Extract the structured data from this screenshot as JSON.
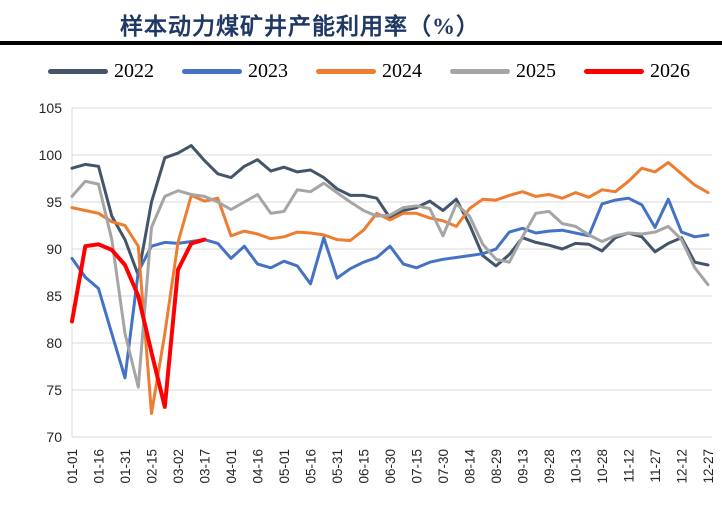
{
  "header": {
    "title": "样本动力煤矿井产能利用率（%）",
    "title_color": "#1F3864",
    "divider_color": "#000000"
  },
  "legend": {
    "position": "top",
    "items": [
      {
        "label": "2022",
        "color": "#44546A"
      },
      {
        "label": "2023",
        "color": "#4472C4"
      },
      {
        "label": "2024",
        "color": "#ED7D31"
      },
      {
        "label": "2025",
        "color": "#A5A5A5"
      },
      {
        "label": "2026",
        "color": "#FF0000"
      }
    ]
  },
  "chart_data": {
    "type": "line",
    "title": "样本动力煤矿井产能利用率（%）",
    "xlabel": "",
    "ylabel": "",
    "ylim": [
      70,
      105
    ],
    "yticks": [
      70,
      75,
      80,
      85,
      90,
      95,
      100,
      105
    ],
    "grid": "horizontal",
    "gridline_color": "#D9D9D9",
    "axis_text_color": "#262626",
    "x": [
      "01-01",
      "01-08",
      "01-16",
      "01-23",
      "01-31",
      "02-08",
      "02-15",
      "02-22",
      "03-02",
      "03-09",
      "03-17",
      "03-24",
      "04-01",
      "04-08",
      "04-16",
      "04-23",
      "05-01",
      "05-08",
      "05-16",
      "05-23",
      "05-31",
      "06-08",
      "06-15",
      "06-22",
      "06-30",
      "07-08",
      "07-15",
      "07-22",
      "07-30",
      "08-06",
      "08-14",
      "08-21",
      "08-29",
      "09-05",
      "09-13",
      "09-21",
      "09-28",
      "10-05",
      "10-13",
      "10-20",
      "10-28",
      "11-05",
      "11-12",
      "11-20",
      "11-27",
      "12-05",
      "12-12",
      "12-20",
      "12-27"
    ],
    "xtick_labels": [
      "01-01",
      "01-16",
      "01-31",
      "02-15",
      "03-02",
      "03-17",
      "04-01",
      "04-16",
      "05-01",
      "05-16",
      "05-31",
      "06-15",
      "06-30",
      "07-15",
      "07-30",
      "08-14",
      "08-29",
      "09-13",
      "09-28",
      "10-13",
      "10-28",
      "11-12",
      "11-27",
      "12-12",
      "12-27"
    ],
    "series": [
      {
        "name": "2022",
        "color": "#44546A",
        "width": 3,
        "values": [
          98.6,
          99.0,
          98.8,
          93.5,
          91.0,
          87.2,
          95.0,
          99.7,
          100.2,
          101.0,
          99.4,
          98.0,
          97.6,
          98.8,
          99.5,
          98.3,
          98.7,
          98.2,
          98.4,
          97.6,
          96.4,
          95.7,
          95.7,
          95.4,
          93.3,
          94.1,
          94.4,
          95.1,
          94.1,
          95.3,
          92.6,
          89.3,
          88.2,
          89.4,
          91.2,
          90.7,
          90.4,
          90.0,
          90.6,
          90.5,
          89.8,
          91.2,
          91.7,
          91.3,
          89.7,
          90.6,
          91.2,
          88.6,
          88.3
        ]
      },
      {
        "name": "2023",
        "color": "#4472C4",
        "width": 3,
        "values": [
          89.0,
          87.0,
          85.8,
          81.0,
          76.3,
          87.6,
          90.3,
          90.7,
          90.6,
          90.8,
          91.0,
          90.6,
          89.0,
          90.3,
          88.4,
          88.0,
          88.7,
          88.2,
          86.3,
          91.2,
          86.9,
          87.9,
          88.6,
          89.1,
          90.3,
          88.4,
          88.0,
          88.6,
          88.9,
          89.1,
          89.3,
          89.5,
          90.0,
          91.8,
          92.2,
          91.7,
          91.9,
          92.0,
          91.7,
          91.4,
          94.8,
          95.2,
          95.4,
          94.7,
          92.3,
          95.3,
          91.8,
          91.3,
          91.5
        ]
      },
      {
        "name": "2024",
        "color": "#ED7D31",
        "width": 3,
        "values": [
          94.4,
          94.1,
          93.8,
          92.9,
          92.5,
          90.3,
          72.5,
          81.0,
          90.7,
          95.7,
          95.1,
          95.4,
          91.4,
          91.9,
          91.6,
          91.1,
          91.3,
          91.8,
          91.7,
          91.5,
          91.0,
          90.9,
          92.0,
          93.8,
          93.1,
          93.8,
          93.8,
          93.3,
          93.0,
          92.4,
          94.3,
          95.3,
          95.2,
          95.7,
          96.1,
          95.6,
          95.8,
          95.4,
          96.0,
          95.5,
          96.3,
          96.1,
          97.2,
          98.6,
          98.2,
          99.2,
          98.0,
          96.8,
          96.0
        ]
      },
      {
        "name": "2025",
        "color": "#A5A5A5",
        "width": 3,
        "values": [
          95.6,
          97.2,
          96.9,
          91.0,
          81.0,
          75.3,
          92.3,
          95.6,
          96.2,
          95.8,
          95.6,
          95.0,
          94.2,
          95.0,
          95.8,
          93.8,
          94.0,
          96.3,
          96.1,
          97.0,
          96.0,
          95.0,
          94.1,
          93.5,
          93.6,
          94.4,
          94.6,
          94.3,
          91.4,
          94.8,
          93.5,
          90.5,
          88.9,
          88.6,
          91.3,
          93.8,
          94.0,
          92.7,
          92.4,
          91.5,
          90.8,
          91.4,
          91.7,
          91.6,
          91.8,
          92.4,
          91.0,
          88.0,
          86.2
        ]
      },
      {
        "name": "2026",
        "color": "#FF0000",
        "width": 4,
        "values": [
          82.3,
          90.3,
          90.5,
          89.9,
          88.3,
          85.0,
          79.0,
          73.2,
          87.8,
          90.6,
          91.0
        ]
      }
    ]
  }
}
